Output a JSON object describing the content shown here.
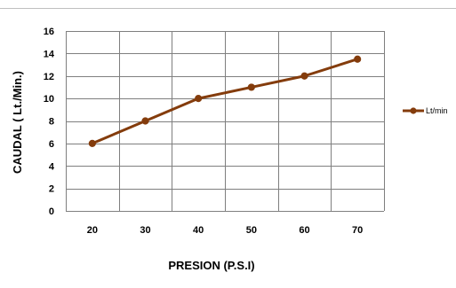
{
  "chart_data": {
    "type": "line",
    "x": [
      20,
      30,
      40,
      50,
      60,
      70
    ],
    "categories": [
      "20",
      "30",
      "40",
      "50",
      "60",
      "70"
    ],
    "series": [
      {
        "name": "Lt/min",
        "values": [
          6,
          8,
          10,
          11,
          12,
          13.5
        ],
        "color": "#843c0c"
      }
    ],
    "xlabel": "PRESION  (P.S.I)",
    "ylabel": "CAUDAL ( Lt./Min.)",
    "ylim": [
      0,
      16
    ],
    "yticks": [
      0,
      2,
      4,
      6,
      8,
      10,
      12,
      14,
      16
    ],
    "grid": true,
    "legend_position": "right"
  }
}
